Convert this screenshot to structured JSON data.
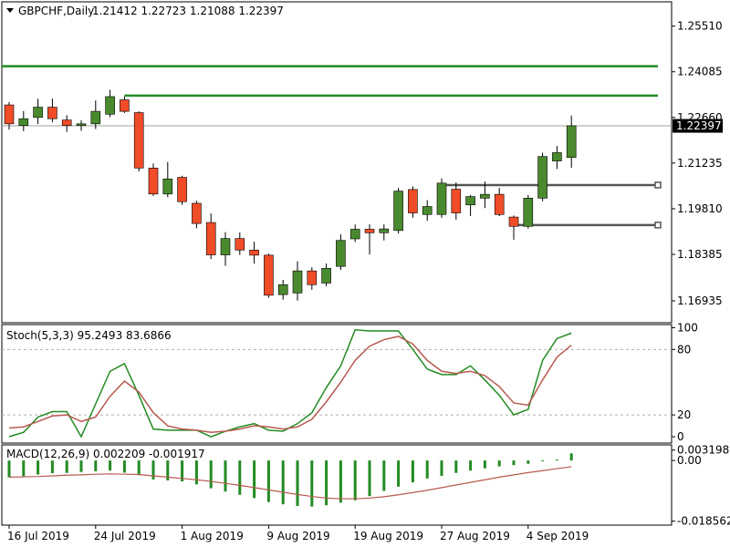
{
  "header": {
    "symbol": "GBPCHF,Daily",
    "ohlc": "1.21412 1.22723 1.21088 1.22397"
  },
  "chart_data": [
    {
      "type": "candlestick",
      "panel": "price",
      "symbol": "GBPCHF",
      "timeframe": "Daily",
      "last_price": 1.22397,
      "last_price_label": "1.22397",
      "ylim": [
        1.1628,
        1.2624
      ],
      "y_ticks": [
        {
          "value": 1.2551,
          "label": "1.25510"
        },
        {
          "value": 1.24085,
          "label": "1.24085"
        },
        {
          "value": 1.2266,
          "label": "1.22660"
        },
        {
          "value": 1.21235,
          "label": "1.21235"
        },
        {
          "value": 1.1981,
          "label": "1.19810"
        },
        {
          "value": 1.18385,
          "label": "1.18385"
        },
        {
          "value": 1.16935,
          "label": "1.16935"
        }
      ],
      "colors": {
        "up": "#4a8a2e",
        "down": "#f04c28",
        "wick": "#000000",
        "trendline": "#228b22",
        "hline": "#555555"
      },
      "candles": [
        {
          "o": 1.2305,
          "h": 1.2314,
          "l": 1.2228,
          "c": 1.2246
        },
        {
          "o": 1.2241,
          "h": 1.2286,
          "l": 1.2223,
          "c": 1.2262
        },
        {
          "o": 1.2266,
          "h": 1.2324,
          "l": 1.2245,
          "c": 1.2298
        },
        {
          "o": 1.2298,
          "h": 1.2325,
          "l": 1.2251,
          "c": 1.2262
        },
        {
          "o": 1.2258,
          "h": 1.2273,
          "l": 1.2221,
          "c": 1.2241
        },
        {
          "o": 1.2241,
          "h": 1.2257,
          "l": 1.2224,
          "c": 1.2246
        },
        {
          "o": 1.2246,
          "h": 1.2319,
          "l": 1.223,
          "c": 1.2285
        },
        {
          "o": 1.2276,
          "h": 1.2352,
          "l": 1.2267,
          "c": 1.2331
        },
        {
          "o": 1.2321,
          "h": 1.2331,
          "l": 1.228,
          "c": 1.2285
        },
        {
          "o": 1.2281,
          "h": 1.2285,
          "l": 1.2097,
          "c": 1.2108
        },
        {
          "o": 1.2108,
          "h": 1.2122,
          "l": 1.2021,
          "c": 1.2027
        },
        {
          "o": 1.2027,
          "h": 1.2127,
          "l": 1.2017,
          "c": 1.2074
        },
        {
          "o": 1.2079,
          "h": 1.2084,
          "l": 1.1993,
          "c": 1.2003
        },
        {
          "o": 1.1998,
          "h": 1.2006,
          "l": 1.192,
          "c": 1.1935
        },
        {
          "o": 1.1938,
          "h": 1.1966,
          "l": 1.1824,
          "c": 1.1837
        },
        {
          "o": 1.1837,
          "h": 1.1908,
          "l": 1.1803,
          "c": 1.1888
        },
        {
          "o": 1.1888,
          "h": 1.1907,
          "l": 1.1837,
          "c": 1.1852
        },
        {
          "o": 1.1852,
          "h": 1.1878,
          "l": 1.181,
          "c": 1.1836
        },
        {
          "o": 1.1836,
          "h": 1.1841,
          "l": 1.1703,
          "c": 1.1711
        },
        {
          "o": 1.1713,
          "h": 1.1759,
          "l": 1.1697,
          "c": 1.1744
        },
        {
          "o": 1.1718,
          "h": 1.1817,
          "l": 1.1694,
          "c": 1.1787
        },
        {
          "o": 1.1787,
          "h": 1.1798,
          "l": 1.1728,
          "c": 1.1744
        },
        {
          "o": 1.1749,
          "h": 1.181,
          "l": 1.1739,
          "c": 1.1795
        },
        {
          "o": 1.1801,
          "h": 1.1901,
          "l": 1.179,
          "c": 1.1882
        },
        {
          "o": 1.1887,
          "h": 1.1932,
          "l": 1.1877,
          "c": 1.1917
        },
        {
          "o": 1.1917,
          "h": 1.1932,
          "l": 1.1838,
          "c": 1.1906
        },
        {
          "o": 1.1906,
          "h": 1.1932,
          "l": 1.1882,
          "c": 1.1918
        },
        {
          "o": 1.1913,
          "h": 1.2046,
          "l": 1.1903,
          "c": 1.2036
        },
        {
          "o": 1.2041,
          "h": 1.2051,
          "l": 1.1953,
          "c": 1.1968
        },
        {
          "o": 1.1963,
          "h": 1.2008,
          "l": 1.1943,
          "c": 1.1988
        },
        {
          "o": 1.1963,
          "h": 1.2076,
          "l": 1.1953,
          "c": 1.2061
        },
        {
          "o": 1.2042,
          "h": 1.2063,
          "l": 1.1947,
          "c": 1.1968
        },
        {
          "o": 1.1993,
          "h": 1.2024,
          "l": 1.1958,
          "c": 1.2019
        },
        {
          "o": 1.2014,
          "h": 1.2066,
          "l": 1.1983,
          "c": 1.2026
        },
        {
          "o": 1.2026,
          "h": 1.2046,
          "l": 1.1958,
          "c": 1.1963
        },
        {
          "o": 1.1955,
          "h": 1.196,
          "l": 1.1884,
          "c": 1.1926
        },
        {
          "o": 1.1926,
          "h": 1.2024,
          "l": 1.1919,
          "c": 1.2014
        },
        {
          "o": 1.2014,
          "h": 1.2156,
          "l": 1.2004,
          "c": 1.2144
        },
        {
          "o": 1.213,
          "h": 1.2177,
          "l": 1.2105,
          "c": 1.2156
        },
        {
          "o": 1.2141,
          "h": 1.2272,
          "l": 1.2109,
          "c": 1.224
        }
      ],
      "trendlines": [
        {
          "from_bar": 8,
          "to_bar": 45,
          "price": 1.2334
        },
        {
          "from_bar": 0,
          "to_bar": 45,
          "price": 1.2426
        }
      ],
      "hlines": [
        {
          "from_bar": 30,
          "to_bar": 45,
          "price": 1.2055
        },
        {
          "from_bar": 35,
          "to_bar": 45,
          "price": 1.193
        }
      ]
    },
    {
      "type": "line",
      "panel": "stochastic",
      "name": "Stoch(5,3,3) 95.2493 83.6866",
      "ylim": [
        -5,
        102
      ],
      "y_ticks": [
        {
          "value": 100,
          "label": "100"
        },
        {
          "value": 80,
          "label": "80"
        },
        {
          "value": 20,
          "label": "20"
        },
        {
          "value": 0,
          "label": "0"
        }
      ],
      "levels": [
        80,
        20
      ],
      "series": [
        {
          "color": "#228b22",
          "values": [
            0,
            4,
            18,
            23,
            23,
            0,
            30,
            60,
            67,
            38,
            7,
            6,
            6,
            6,
            0,
            5,
            9,
            12,
            6,
            5,
            12,
            22,
            45,
            65,
            98,
            97,
            97,
            97,
            80,
            62,
            57,
            57,
            65,
            52,
            38,
            20,
            25,
            70,
            90,
            95
          ]
        },
        {
          "color": "#b85a50",
          "values": [
            8,
            9,
            14,
            19,
            20,
            14,
            18,
            37,
            51,
            41,
            22,
            10,
            7,
            6,
            4,
            5,
            7,
            10,
            9,
            7,
            9,
            16,
            32,
            50,
            70,
            83,
            89,
            92,
            85,
            70,
            60,
            58,
            60,
            56,
            46,
            31,
            29,
            52,
            73,
            84
          ]
        }
      ]
    },
    {
      "type": "bar+line",
      "panel": "macd",
      "name": "MACD(12,26,9) 0.002209 -0.001917",
      "ylim": [
        -0.0195,
        0.0045
      ],
      "y_ticks": [
        {
          "value": 0.003198,
          "label": "0.003198"
        },
        {
          "value": 0.0,
          "label": "0.00"
        },
        {
          "value": -0.018562,
          "label": "-0.018562"
        }
      ],
      "macd_bars": [
        -0.0051,
        -0.0048,
        -0.0043,
        -0.0039,
        -0.0038,
        -0.0035,
        -0.0033,
        -0.0031,
        -0.0037,
        -0.0045,
        -0.0058,
        -0.0061,
        -0.0064,
        -0.0073,
        -0.0085,
        -0.0095,
        -0.0105,
        -0.0115,
        -0.0127,
        -0.0134,
        -0.0139,
        -0.0141,
        -0.0137,
        -0.0129,
        -0.0122,
        -0.0109,
        -0.0093,
        -0.008,
        -0.0067,
        -0.0055,
        -0.0047,
        -0.0038,
        -0.0031,
        -0.0024,
        -0.0018,
        -0.0014,
        -0.001,
        -0.0001,
        0.0003,
        0.0022
      ],
      "signal": [
        -0.0051,
        -0.005,
        -0.0049,
        -0.0047,
        -0.0045,
        -0.0044,
        -0.0042,
        -0.0041,
        -0.0042,
        -0.0043,
        -0.0047,
        -0.0051,
        -0.0055,
        -0.0059,
        -0.0064,
        -0.007,
        -0.0076,
        -0.0083,
        -0.009,
        -0.0097,
        -0.0104,
        -0.011,
        -0.0115,
        -0.0117,
        -0.0117,
        -0.0115,
        -0.0111,
        -0.0105,
        -0.0098,
        -0.0091,
        -0.0083,
        -0.0075,
        -0.0067,
        -0.0059,
        -0.0051,
        -0.0044,
        -0.0037,
        -0.0031,
        -0.0025,
        -0.0019
      ],
      "colors": {
        "bars": "#228b22",
        "signal": "#b85a50"
      }
    }
  ],
  "x_axis": {
    "labels": [
      {
        "bar": 0,
        "label": "16 Jul 2019"
      },
      {
        "bar": 6,
        "label": "24 Jul 2019"
      },
      {
        "bar": 12,
        "label": "1 Aug 2019"
      },
      {
        "bar": 18,
        "label": "9 Aug 2019"
      },
      {
        "bar": 24,
        "label": "19 Aug 2019"
      },
      {
        "bar": 30,
        "label": "27 Aug 2019"
      },
      {
        "bar": 36,
        "label": "4 Sep 2019"
      }
    ]
  }
}
